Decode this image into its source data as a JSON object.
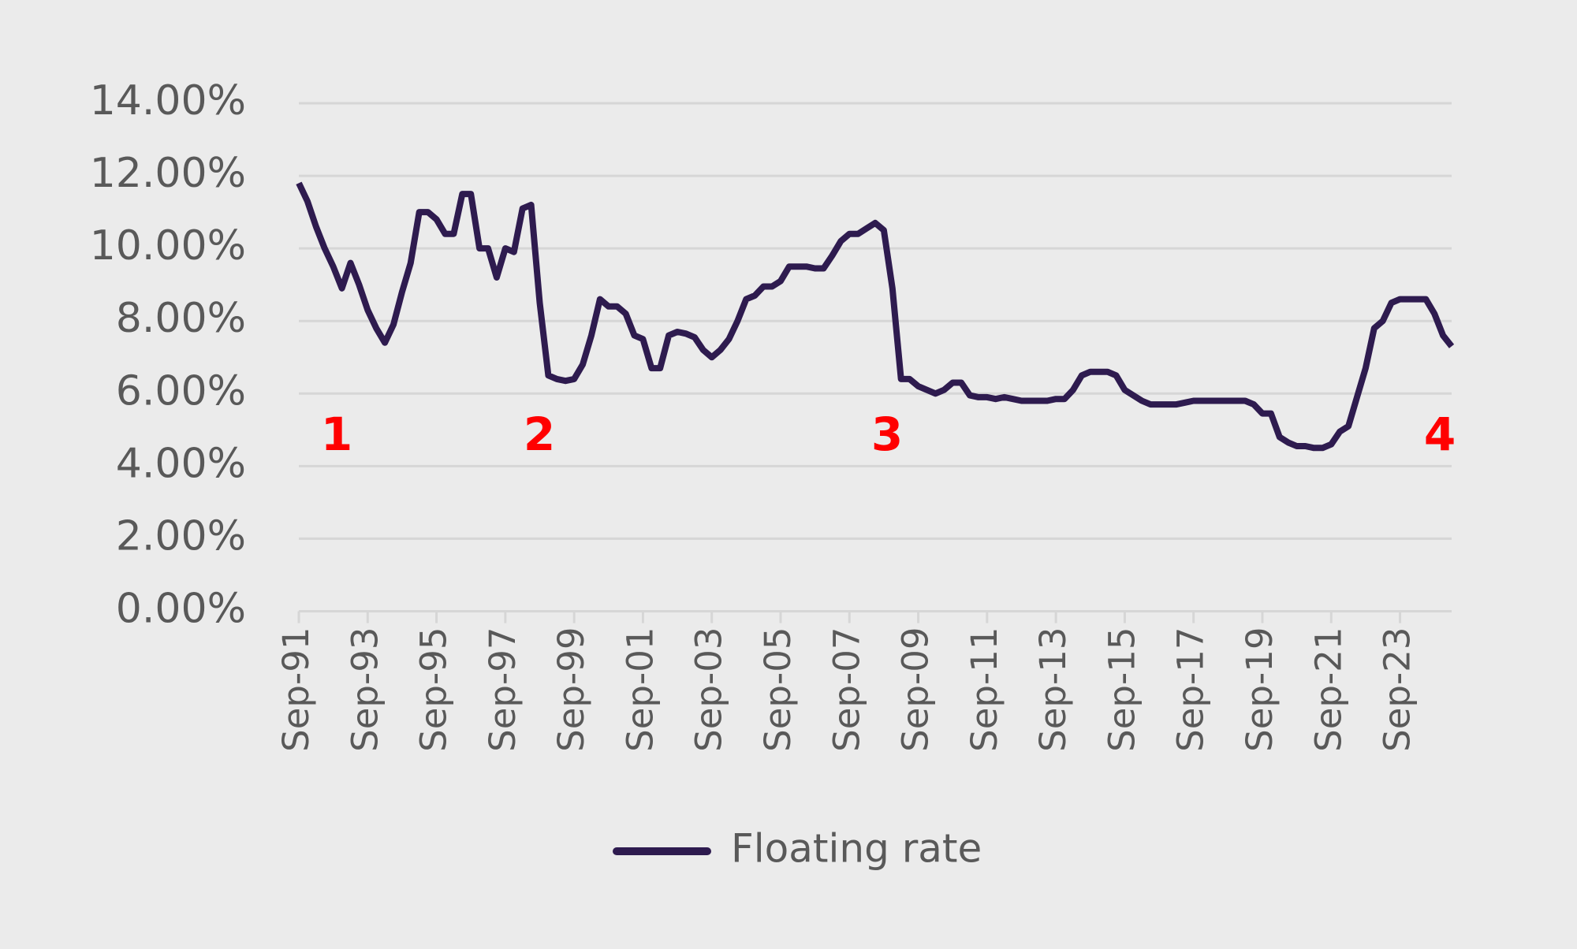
{
  "chart_data": {
    "type": "line",
    "categories": [
      "Sep-91",
      null,
      null,
      null,
      null,
      null,
      null,
      null,
      "Sep-93",
      null,
      null,
      null,
      null,
      null,
      null,
      null,
      "Sep-95",
      null,
      null,
      null,
      null,
      null,
      null,
      null,
      "Sep-97",
      null,
      null,
      null,
      null,
      null,
      null,
      null,
      "Sep-99",
      null,
      null,
      null,
      null,
      null,
      null,
      null,
      "Sep-01",
      null,
      null,
      null,
      null,
      null,
      null,
      null,
      "Sep-03",
      null,
      null,
      null,
      null,
      null,
      null,
      null,
      "Sep-05",
      null,
      null,
      null,
      null,
      null,
      null,
      null,
      "Sep-07",
      null,
      null,
      null,
      null,
      null,
      null,
      null,
      "Sep-09",
      null,
      null,
      null,
      null,
      null,
      null,
      null,
      "Sep-11",
      null,
      null,
      null,
      null,
      null,
      null,
      null,
      "Sep-13",
      null,
      null,
      null,
      null,
      null,
      null,
      null,
      "Sep-15",
      null,
      null,
      null,
      null,
      null,
      null,
      null,
      "Sep-17",
      null,
      null,
      null,
      null,
      null,
      null,
      null,
      "Sep-19",
      null,
      null,
      null,
      null,
      null,
      null,
      null,
      "Sep-21",
      null,
      null,
      null,
      null,
      null,
      null,
      null,
      "Sep-23",
      null,
      null,
      null,
      null,
      null,
      null
    ],
    "series": [
      {
        "name": "Floating rate",
        "color": "#2e1b4f",
        "values": [
          11.8,
          11.3,
          10.6,
          10.0,
          9.5,
          8.9,
          9.6,
          9.0,
          8.3,
          7.8,
          7.4,
          7.9,
          8.8,
          9.6,
          11.0,
          11.0,
          10.8,
          10.4,
          10.4,
          11.5,
          11.5,
          10.0,
          10.0,
          9.2,
          10.0,
          9.9,
          11.1,
          11.2,
          8.5,
          6.5,
          6.4,
          6.35,
          6.4,
          6.8,
          7.6,
          8.6,
          8.4,
          8.4,
          8.2,
          7.6,
          7.5,
          6.7,
          6.7,
          7.6,
          7.7,
          7.65,
          7.55,
          7.2,
          7.0,
          7.2,
          7.5,
          8.0,
          8.6,
          8.7,
          8.95,
          8.95,
          9.1,
          9.5,
          9.5,
          9.5,
          9.45,
          9.45,
          9.8,
          10.2,
          10.4,
          10.4,
          10.55,
          10.7,
          10.5,
          8.9,
          6.4,
          6.4,
          6.2,
          6.1,
          6.0,
          6.1,
          6.3,
          6.3,
          5.95,
          5.9,
          5.9,
          5.85,
          5.9,
          5.85,
          5.8,
          5.8,
          5.8,
          5.8,
          5.85,
          5.85,
          6.1,
          6.5,
          6.6,
          6.6,
          6.6,
          6.5,
          6.1,
          5.95,
          5.8,
          5.7,
          5.7,
          5.7,
          5.7,
          5.75,
          5.8,
          5.8,
          5.8,
          5.8,
          5.8,
          5.8,
          5.8,
          5.7,
          5.45,
          5.45,
          4.8,
          4.65,
          4.55,
          4.55,
          4.5,
          4.5,
          4.6,
          4.95,
          5.1,
          5.9,
          6.7,
          7.8,
          8.0,
          8.5,
          8.6,
          8.6,
          8.6,
          8.6,
          8.2,
          7.6,
          7.3
        ]
      }
    ],
    "ylim": [
      0,
      14
    ],
    "yticks": [
      {
        "value": 0,
        "label": "0.00%"
      },
      {
        "value": 2,
        "label": "2.00%"
      },
      {
        "value": 4,
        "label": "4.00%"
      },
      {
        "value": 6,
        "label": "6.00%"
      },
      {
        "value": 8,
        "label": "8.00%"
      },
      {
        "value": 10,
        "label": "10.00%"
      },
      {
        "value": 12,
        "label": "12.00%"
      },
      {
        "value": 14,
        "label": "14.00%"
      }
    ],
    "grid": true,
    "legend": "bottom",
    "annotations": [
      "1",
      "2",
      "3",
      "4"
    ]
  }
}
